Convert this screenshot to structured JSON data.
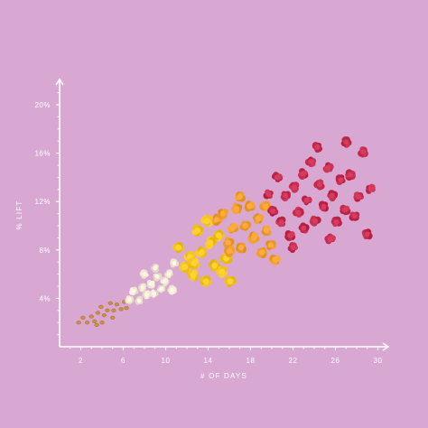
{
  "chart_data": {
    "type": "scatter",
    "title": "",
    "xlabel": "# OF DAYS",
    "ylabel": "% LIFT",
    "xlim": [
      0,
      31.5
    ],
    "ylim": [
      0,
      22
    ],
    "x_ticks": [
      2,
      6,
      10,
      14,
      18,
      22,
      26,
      30
    ],
    "x_tick_labels": [
      "2",
      "6",
      "10",
      "14",
      "18",
      "22",
      "26",
      "30"
    ],
    "y_ticks": [
      4,
      8,
      12,
      16,
      20
    ],
    "y_tick_labels": [
      "4%",
      "8%",
      "12%",
      "16%",
      "20%"
    ],
    "grid": false,
    "legend": "none",
    "colors": {
      "background": "#d8a8d3",
      "axis": "#ffffff",
      "kernel": "#c98e45",
      "white_popcorn": "#ece3d1",
      "yellow_popcorn": "#f2c21c",
      "orange_popcorn": "#ec9a2a",
      "red_popcorn": "#c42a4e"
    },
    "series": [
      {
        "kind": "kernel",
        "points": [
          [
            1.8,
            2.0
          ],
          [
            2.2,
            2.4
          ],
          [
            2.6,
            2.0
          ],
          [
            3.0,
            2.5
          ],
          [
            3.3,
            2.1
          ],
          [
            3.6,
            2.8
          ],
          [
            3.9,
            3.3
          ],
          [
            4.2,
            2.6
          ],
          [
            4.5,
            3.0
          ],
          [
            4.8,
            3.6
          ],
          [
            5.1,
            3.0
          ],
          [
            5.4,
            3.5
          ],
          [
            5.8,
            3.1
          ],
          [
            6.1,
            3.7
          ],
          [
            4.0,
            2.0
          ],
          [
            5.0,
            2.4
          ],
          [
            6.3,
            3.2
          ],
          [
            3.5,
            1.8
          ]
        ]
      },
      {
        "kind": "white_popcorn",
        "points": [
          [
            6.6,
            3.9
          ],
          [
            7.0,
            4.6
          ],
          [
            7.5,
            3.8
          ],
          [
            7.8,
            4.9
          ],
          [
            8.2,
            4.3
          ],
          [
            8.6,
            5.2
          ],
          [
            8.9,
            4.4
          ],
          [
            9.2,
            5.8
          ],
          [
            9.6,
            4.8
          ],
          [
            9.9,
            5.4
          ],
          [
            10.3,
            6.0
          ],
          [
            10.6,
            4.7
          ],
          [
            8.0,
            6.0
          ],
          [
            9.0,
            6.5
          ],
          [
            10.8,
            6.9
          ]
        ]
      },
      {
        "kind": "yellow_popcorn",
        "points": [
          [
            11.2,
            8.2
          ],
          [
            11.8,
            6.6
          ],
          [
            12.3,
            7.4
          ],
          [
            12.6,
            5.9
          ],
          [
            13.0,
            9.6
          ],
          [
            13.4,
            7.8
          ],
          [
            13.8,
            5.4
          ],
          [
            14.2,
            8.6
          ],
          [
            14.6,
            6.7
          ],
          [
            15.0,
            9.2
          ],
          [
            15.3,
            6.2
          ],
          [
            15.7,
            7.3
          ],
          [
            16.1,
            5.4
          ],
          [
            13.9,
            10.4
          ],
          [
            12.7,
            6.9
          ]
        ]
      },
      {
        "kind": "orange_popcorn",
        "points": [
          [
            14.8,
            10.5
          ],
          [
            15.4,
            11.0
          ],
          [
            15.9,
            8.6
          ],
          [
            16.3,
            9.8
          ],
          [
            16.7,
            11.4
          ],
          [
            17.1,
            8.2
          ],
          [
            17.5,
            10.0
          ],
          [
            17.9,
            11.6
          ],
          [
            18.3,
            9.0
          ],
          [
            18.7,
            10.6
          ],
          [
            19.1,
            7.8
          ],
          [
            19.5,
            9.6
          ],
          [
            19.9,
            8.4
          ],
          [
            20.3,
            7.2
          ],
          [
            17.0,
            12.4
          ],
          [
            19.4,
            11.6
          ],
          [
            16.0,
            7.9
          ]
        ]
      },
      {
        "kind": "red_popcorn",
        "points": [
          [
            19.7,
            12.6
          ],
          [
            20.1,
            11.2
          ],
          [
            20.5,
            14.0
          ],
          [
            20.9,
            10.3
          ],
          [
            21.3,
            12.5
          ],
          [
            21.7,
            9.2
          ],
          [
            22.1,
            13.2
          ],
          [
            22.5,
            11.1
          ],
          [
            22.9,
            14.3
          ],
          [
            23.3,
            12.1
          ],
          [
            23.7,
            15.3
          ],
          [
            24.1,
            10.4
          ],
          [
            24.5,
            13.4
          ],
          [
            24.9,
            11.6
          ],
          [
            25.3,
            14.8
          ],
          [
            25.7,
            12.5
          ],
          [
            26.1,
            10.3
          ],
          [
            26.5,
            13.8
          ],
          [
            26.9,
            11.3
          ],
          [
            27.4,
            14.2
          ],
          [
            27.8,
            10.8
          ],
          [
            28.2,
            12.4
          ],
          [
            28.6,
            16.1
          ],
          [
            29.0,
            9.3
          ],
          [
            25.5,
            8.9
          ],
          [
            27.0,
            16.9
          ],
          [
            24.3,
            16.5
          ],
          [
            22.0,
            8.2
          ],
          [
            29.3,
            13.0
          ],
          [
            23.0,
            9.8
          ]
        ]
      }
    ]
  }
}
